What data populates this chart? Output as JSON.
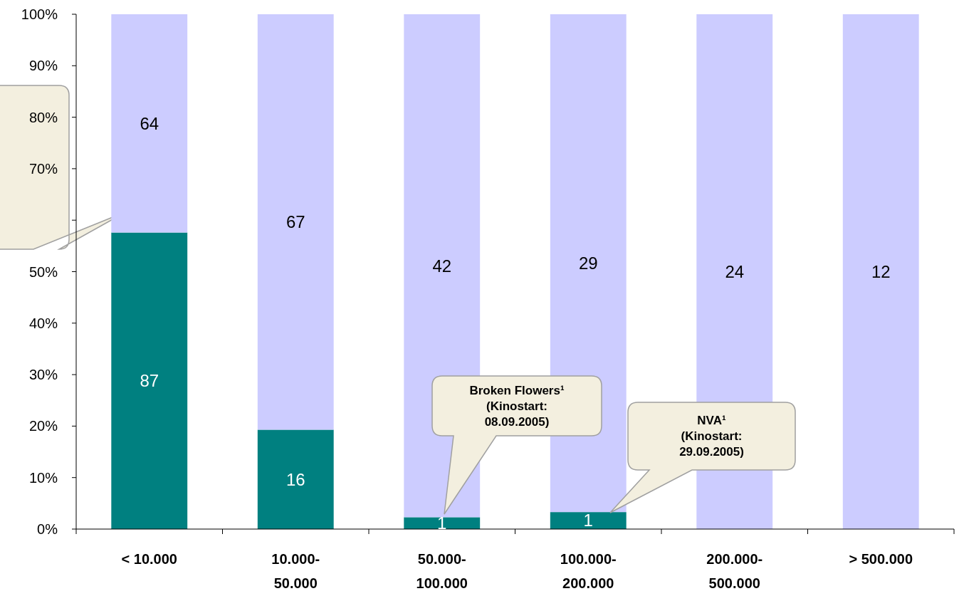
{
  "chart_data": {
    "type": "bar",
    "stacked": true,
    "categories": [
      "< 10.000",
      "10.000-\n50.000",
      "50.000-\n100.000",
      "100.000-\n200.000",
      "200.000-\n500.000",
      "> 500.000"
    ],
    "series": [
      {
        "color": "#008080",
        "values": [
          57.6,
          19.3,
          2.3,
          3.3,
          0,
          0
        ]
      },
      {
        "color": "#ccccff",
        "values": [
          42.4,
          80.7,
          97.7,
          96.7,
          100,
          100
        ]
      }
    ],
    "ylim": [
      0,
      100
    ],
    "yticks": [
      {
        "value": 0,
        "label": "0%"
      },
      {
        "value": 10,
        "label": "10%"
      },
      {
        "value": 20,
        "label": "20%"
      },
      {
        "value": 30,
        "label": "30%"
      },
      {
        "value": 40,
        "label": "40%"
      },
      {
        "value": 50,
        "label": "50%"
      },
      {
        "value": 60,
        "label": null
      },
      {
        "value": 70,
        "label": "70%"
      },
      {
        "value": 80,
        "label": "80%"
      },
      {
        "value": 90,
        "label": "90%"
      },
      {
        "value": 100,
        "label": "100%"
      }
    ],
    "grid": false,
    "annotations": [
      "Broken Flowers¹\n(Kinostart:\n08.09.2005)",
      "NVA¹\n(Kinostart:\n29.09.2005)",
      "87",
      "16",
      "1",
      "1",
      "64",
      "67",
      "42",
      "29",
      "24",
      "12"
    ]
  }
}
